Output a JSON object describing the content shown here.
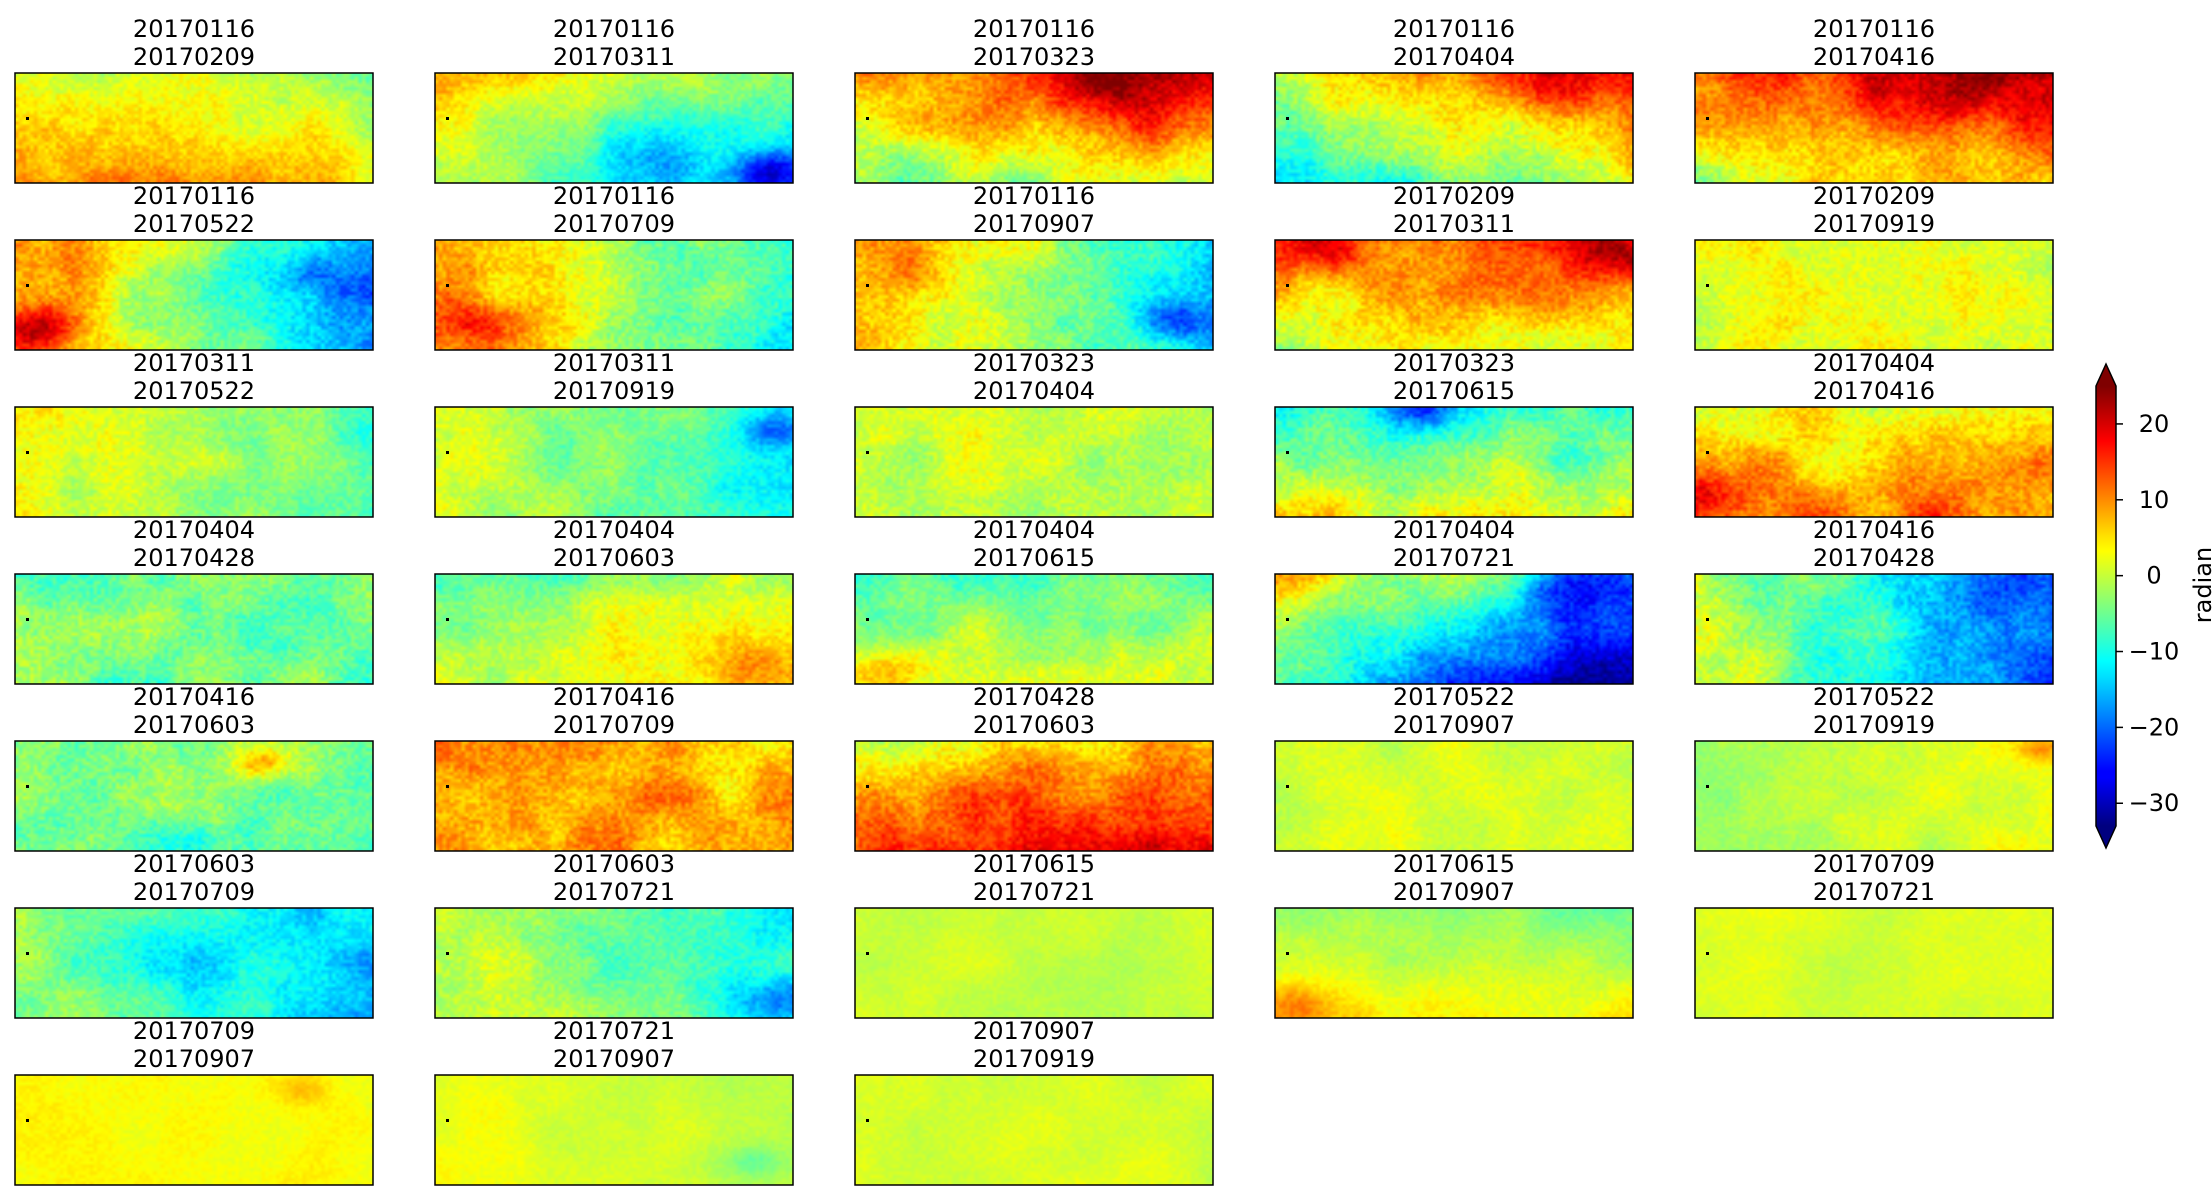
{
  "chart_data": {
    "type": "heatmap",
    "colormap": "jet",
    "grid": false,
    "layout": {
      "rows": 7,
      "cols": 5
    },
    "reference_marker": "black dot near left edge of each panel",
    "panels": [
      {
        "date1": "20170116",
        "date2": "20170209",
        "pattern": {
          "base": 3,
          "gx": -2,
          "gy": 4,
          "hot": [
            [
              0.3,
              1.0,
              5,
              0.25
            ]
          ],
          "noise": 5
        }
      },
      {
        "date1": "20170116",
        "date2": "20170311",
        "pattern": {
          "base": -4,
          "gx": -6,
          "gy": -4,
          "hot": [
            [
              0.95,
              0.9,
              -16,
              0.2
            ],
            [
              0.6,
              0.8,
              -8,
              0.25
            ]
          ],
          "noise": 5
        }
      },
      {
        "date1": "20170116",
        "date2": "20170323",
        "pattern": {
          "base": 7,
          "gx": 5,
          "gy": -8,
          "hot": [
            [
              0.75,
              0.1,
              8,
              0.3
            ]
          ],
          "noise": 6
        }
      },
      {
        "date1": "20170116",
        "date2": "20170404",
        "pattern": {
          "base": 1,
          "gx": 6,
          "gy": -7,
          "hot": [
            [
              0.8,
              0.05,
              8,
              0.25
            ]
          ],
          "noise": 6
        }
      },
      {
        "date1": "20170116",
        "date2": "20170416",
        "pattern": {
          "base": 10,
          "gx": 5,
          "gy": -7,
          "hot": [
            [
              0.65,
              0.25,
              6,
              0.3
            ]
          ],
          "noise": 6
        }
      },
      {
        "date1": "20170116",
        "date2": "20170522",
        "pattern": {
          "base": -3,
          "gx": -14,
          "gy": 0,
          "hot": [
            [
              0.08,
              0.8,
              14,
              0.2
            ],
            [
              0.85,
              0.3,
              -6,
              0.2
            ]
          ],
          "noise": 6
        }
      },
      {
        "date1": "20170116",
        "date2": "20170709",
        "pattern": {
          "base": 0,
          "gx": -10,
          "gy": 0,
          "hot": [
            [
              0.12,
              0.75,
              10,
              0.2
            ]
          ],
          "noise": 6
        }
      },
      {
        "date1": "20170116",
        "date2": "20170907",
        "pattern": {
          "base": -2,
          "gx": -10,
          "gy": 0,
          "hot": [
            [
              0.9,
              0.75,
              -10,
              0.2
            ],
            [
              0.15,
              0.3,
              6,
              0.2
            ]
          ],
          "noise": 6
        }
      },
      {
        "date1": "20170209",
        "date2": "20170311",
        "pattern": {
          "base": 7,
          "gx": 2,
          "gy": -6,
          "hot": [
            [
              0.95,
              0.1,
              10,
              0.25
            ],
            [
              0.1,
              0.1,
              5,
              0.2
            ]
          ],
          "noise": 6
        }
      },
      {
        "date1": "20170209",
        "date2": "20170919",
        "pattern": {
          "base": 2,
          "gx": 0,
          "gy": 0,
          "hot": [],
          "noise": 5
        }
      },
      {
        "date1": "20170311",
        "date2": "20170522",
        "pattern": {
          "base": -2,
          "gx": -4,
          "gy": 0,
          "hot": [],
          "noise": 5
        }
      },
      {
        "date1": "20170311",
        "date2": "20170919",
        "pattern": {
          "base": -4,
          "gx": -6,
          "gy": 0,
          "hot": [
            [
              0.95,
              0.2,
              -8,
              0.15
            ]
          ],
          "noise": 5
        }
      },
      {
        "date1": "20170323",
        "date2": "20170404",
        "pattern": {
          "base": 0,
          "gx": 0,
          "gy": 0,
          "hot": [],
          "noise": 5
        }
      },
      {
        "date1": "20170323",
        "date2": "20170615",
        "pattern": {
          "base": -3,
          "gx": 0,
          "gy": 7,
          "hot": [
            [
              0.4,
              0.0,
              -12,
              0.2
            ]
          ],
          "noise": 6
        }
      },
      {
        "date1": "20170404",
        "date2": "20170416",
        "pattern": {
          "base": 7,
          "gx": 0,
          "gy": 4,
          "hot": [
            [
              0.05,
              0.8,
              8,
              0.2
            ]
          ],
          "noise": 6
        }
      },
      {
        "date1": "20170404",
        "date2": "20170428",
        "pattern": {
          "base": -5,
          "gx": 0,
          "gy": 0,
          "hot": [],
          "noise": 6
        }
      },
      {
        "date1": "20170404",
        "date2": "20170603",
        "pattern": {
          "base": 0,
          "gx": 3,
          "gy": 3,
          "hot": [
            [
              0.9,
              0.8,
              5,
              0.2
            ]
          ],
          "noise": 5
        }
      },
      {
        "date1": "20170404",
        "date2": "20170615",
        "pattern": {
          "base": -2,
          "gx": 0,
          "gy": 4,
          "hot": [
            [
              0.1,
              0.9,
              8,
              0.2
            ]
          ],
          "noise": 5
        }
      },
      {
        "date1": "20170404",
        "date2": "20170721",
        "pattern": {
          "base": -12,
          "gx": -12,
          "gy": -8,
          "hot": [
            [
              0.85,
              0.1,
              -10,
              0.3
            ]
          ],
          "noise": 6
        }
      },
      {
        "date1": "20170416",
        "date2": "20170428",
        "pattern": {
          "base": -10,
          "gx": -12,
          "gy": 0,
          "hot": [],
          "noise": 6
        }
      },
      {
        "date1": "20170416",
        "date2": "20170603",
        "pattern": {
          "base": -4,
          "gx": 0,
          "gy": 0,
          "hot": [
            [
              0.7,
              0.2,
              12,
              0.15
            ],
            [
              0.5,
              0.9,
              -8,
              0.2
            ]
          ],
          "noise": 6
        }
      },
      {
        "date1": "20170416",
        "date2": "20170709",
        "pattern": {
          "base": 8,
          "gx": 0,
          "gy": 0,
          "hot": [],
          "noise": 6
        }
      },
      {
        "date1": "20170428",
        "date2": "20170603",
        "pattern": {
          "base": 10,
          "gx": 2,
          "gy": 6,
          "hot": [
            [
              0.3,
              0.5,
              6,
              0.3
            ]
          ],
          "noise": 6
        }
      },
      {
        "date1": "20170522",
        "date2": "20170907",
        "pattern": {
          "base": 1,
          "gx": 0,
          "gy": 0,
          "hot": [],
          "noise": 3
        }
      },
      {
        "date1": "20170522",
        "date2": "20170919",
        "pattern": {
          "base": 0,
          "gx": 2,
          "gy": 0,
          "hot": [
            [
              0.97,
              0.05,
              8,
              0.12
            ]
          ],
          "noise": 3
        }
      },
      {
        "date1": "20170603",
        "date2": "20170709",
        "pattern": {
          "base": -8,
          "gx": -6,
          "gy": 0,
          "hot": [
            [
              0.5,
              0.5,
              -4,
              0.3
            ]
          ],
          "noise": 5
        }
      },
      {
        "date1": "20170603",
        "date2": "20170721",
        "pattern": {
          "base": -5,
          "gx": -6,
          "gy": 0,
          "hot": [
            [
              0.95,
              0.85,
              -8,
              0.2
            ]
          ],
          "noise": 5
        }
      },
      {
        "date1": "20170615",
        "date2": "20170721",
        "pattern": {
          "base": 0,
          "gx": 0,
          "gy": 0,
          "hot": [],
          "noise": 2
        }
      },
      {
        "date1": "20170615",
        "date2": "20170907",
        "pattern": {
          "base": 0,
          "gx": 0,
          "gy": 4,
          "hot": [
            [
              0.05,
              0.9,
              6,
              0.2
            ]
          ],
          "noise": 3
        }
      },
      {
        "date1": "20170709",
        "date2": "20170721",
        "pattern": {
          "base": 1,
          "gx": 0,
          "gy": 0,
          "hot": [],
          "noise": 2
        }
      },
      {
        "date1": "20170709",
        "date2": "20170907",
        "pattern": {
          "base": 3,
          "gx": 0,
          "gy": 0,
          "hot": [
            [
              0.8,
              0.1,
              4,
              0.15
            ]
          ],
          "noise": 2
        }
      },
      {
        "date1": "20170721",
        "date2": "20170907",
        "pattern": {
          "base": 1,
          "gx": -2,
          "gy": 0,
          "hot": [
            [
              0.9,
              0.8,
              -4,
              0.15
            ]
          ],
          "noise": 2
        }
      },
      {
        "date1": "20170907",
        "date2": "20170919",
        "pattern": {
          "base": 1,
          "gx": 0,
          "gy": 0,
          "hot": [],
          "noise": 2
        }
      }
    ],
    "colorbar": {
      "label": "radian",
      "vmin": -33,
      "vmax": 25,
      "ticks": [
        20,
        10,
        0,
        -10,
        -20,
        -30
      ],
      "extend": "both"
    }
  }
}
